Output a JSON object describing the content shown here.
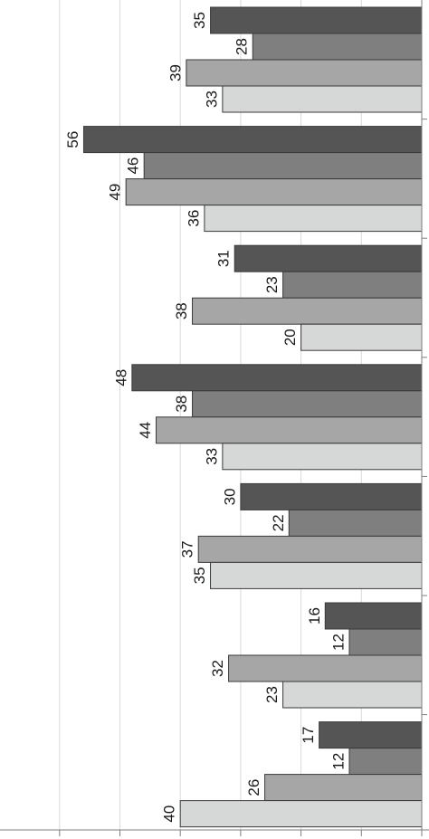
{
  "chart_data": {
    "type": "bar",
    "orientation": "horizontal",
    "value_axis_direction": "leftward",
    "rotated": true,
    "categories": [
      "",
      "",
      "",
      "",
      "",
      "",
      ""
    ],
    "series": [
      {
        "values": [
          35,
          56,
          31,
          48,
          30,
          16,
          17
        ],
        "color": "#555555"
      },
      {
        "values": [
          28,
          46,
          23,
          38,
          22,
          12,
          12
        ],
        "color": "#7f7f7f"
      },
      {
        "values": [
          39,
          49,
          38,
          44,
          37,
          32,
          26
        ],
        "color": "#a6a6a7"
      },
      {
        "values": [
          33,
          36,
          20,
          33,
          35,
          23,
          40
        ],
        "color": "#d6d7d7"
      }
    ],
    "xlim": [
      0,
      60
    ],
    "grid_step": 10,
    "grid": true,
    "legend": "none",
    "title": "",
    "xlabel": "",
    "ylabel": ""
  }
}
